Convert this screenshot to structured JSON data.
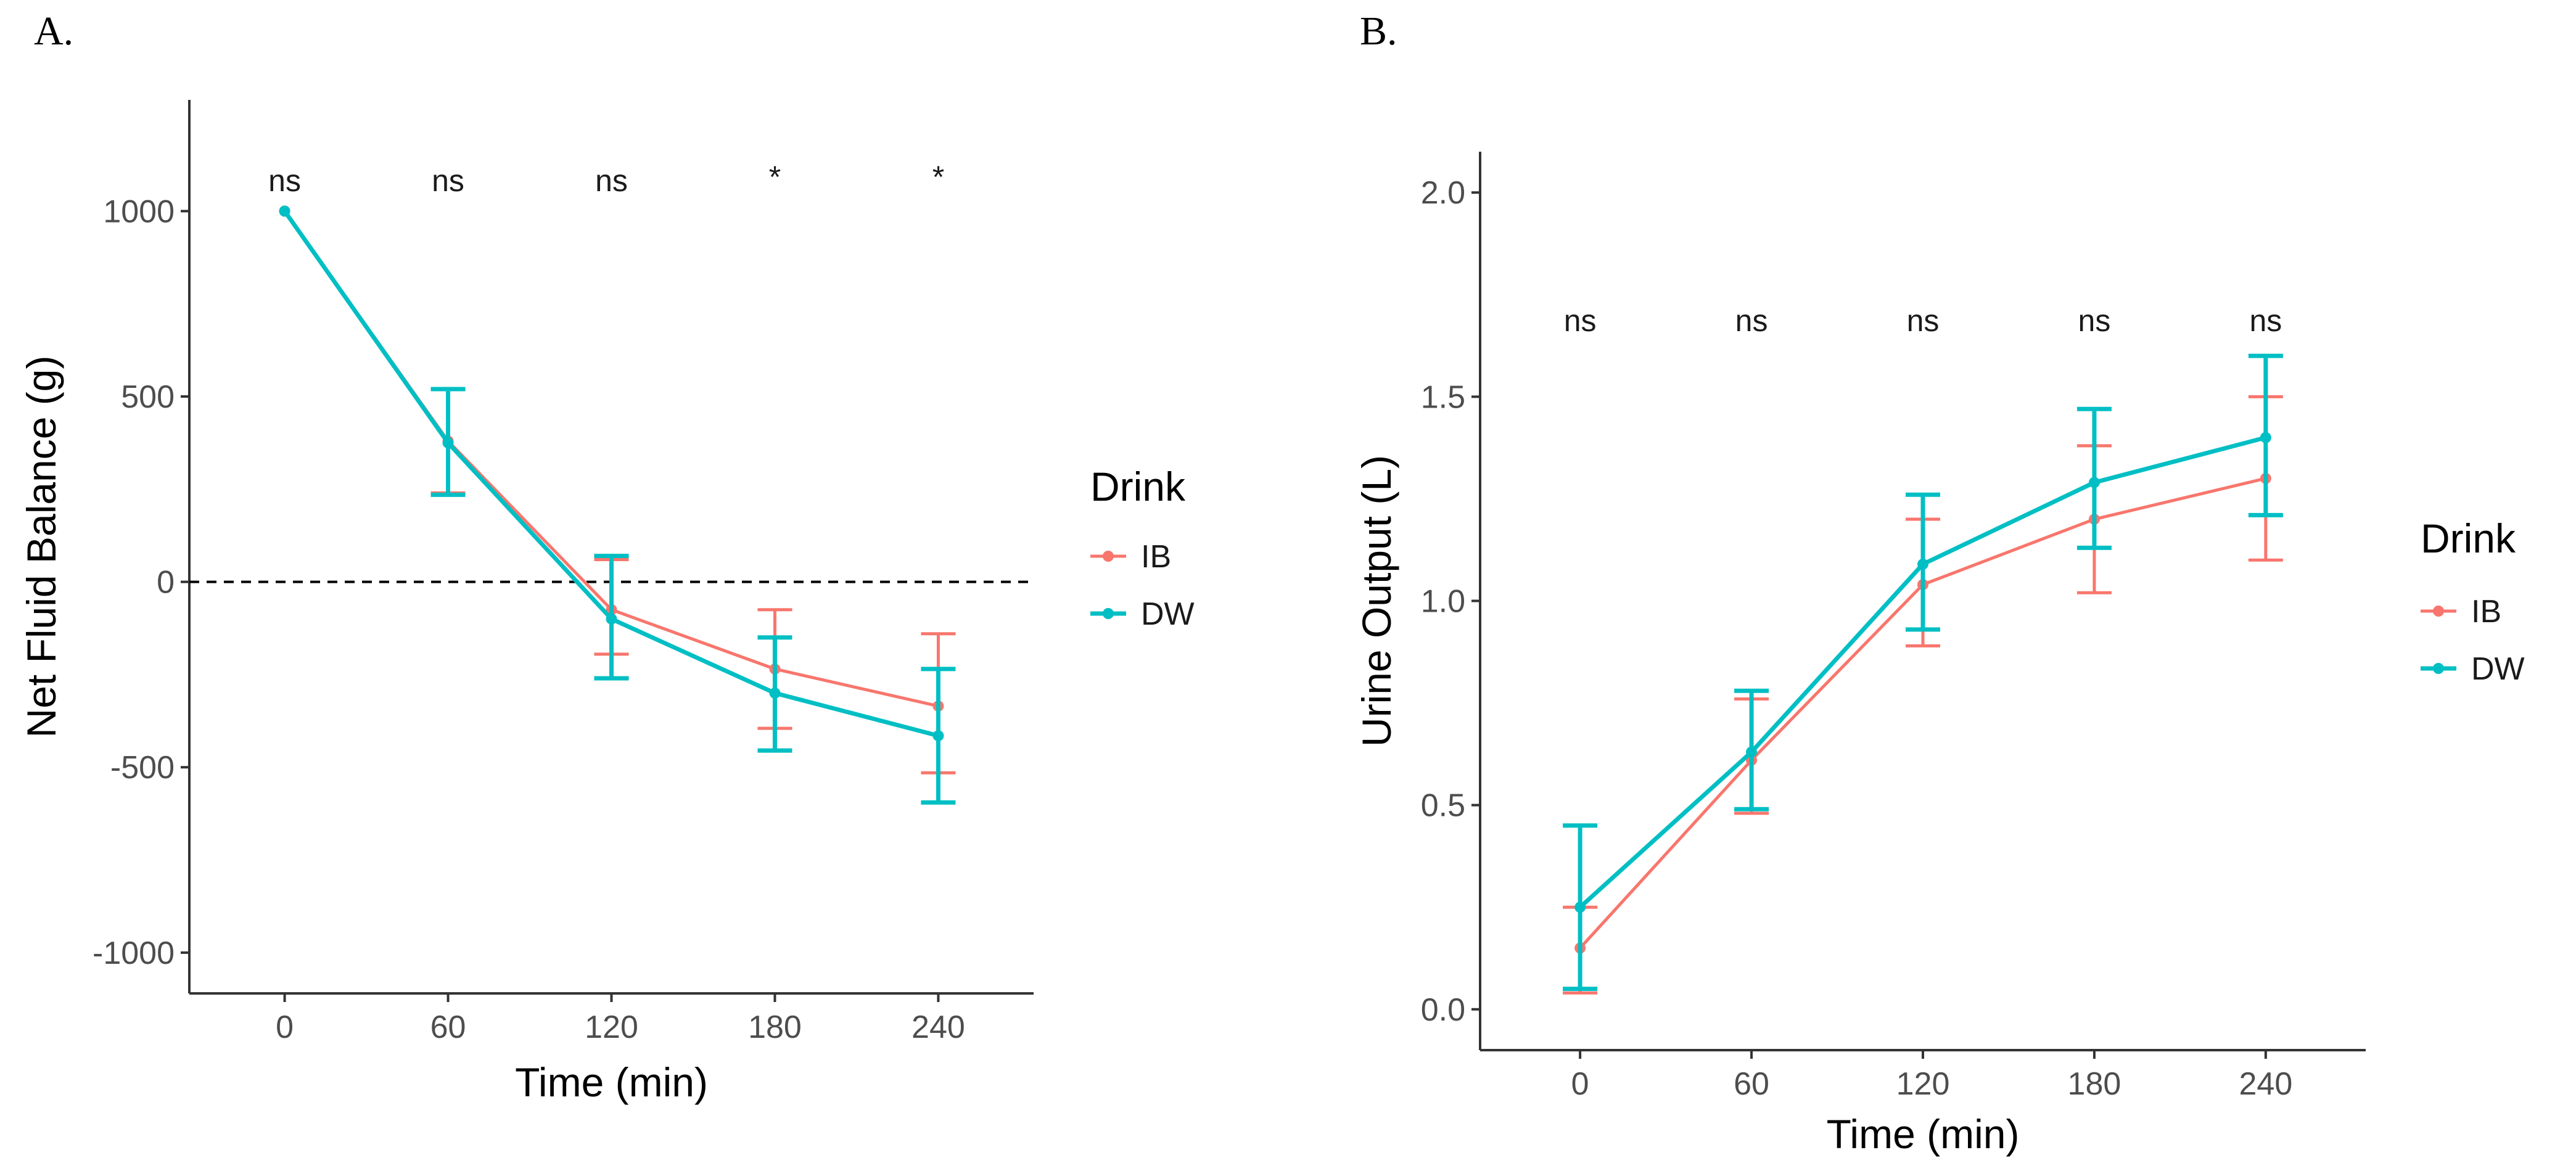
{
  "chart_data": [
    {
      "type": "line",
      "panel": "A.",
      "title": "",
      "xlabel": "Time (min)",
      "ylabel": "Net Fluid Balance (g)",
      "x": [
        0,
        60,
        120,
        180,
        240
      ],
      "x_ticks": [
        0,
        60,
        120,
        180,
        240
      ],
      "y_ticks": [
        -1000,
        -500,
        0,
        500,
        1000
      ],
      "xlim": [
        -35,
        275
      ],
      "ylim": [
        -1110,
        1300
      ],
      "reference_line": 0,
      "significance": [
        "ns",
        "ns",
        "ns",
        "*",
        "*"
      ],
      "legend": {
        "title": "Drink",
        "position": "right"
      },
      "series": [
        {
          "name": "IB",
          "color": "#F8766D",
          "values": [
            1000,
            380,
            -75,
            -235,
            -335
          ],
          "err_low": [
            1000,
            240,
            -195,
            -395,
            -515
          ],
          "err_high": [
            1000,
            520,
            60,
            -75,
            -140
          ]
        },
        {
          "name": "DW",
          "color": "#00BFC4",
          "values": [
            1000,
            375,
            -100,
            -300,
            -415
          ],
          "err_low": [
            1000,
            235,
            -260,
            -455,
            -595
          ],
          "err_high": [
            1000,
            520,
            70,
            -150,
            -235
          ]
        }
      ]
    },
    {
      "type": "line",
      "panel": "B.",
      "title": "",
      "xlabel": "Time (min)",
      "ylabel": "Urine Output (L)",
      "x": [
        0,
        60,
        120,
        180,
        240
      ],
      "x_ticks": [
        0,
        60,
        120,
        180,
        240
      ],
      "y_ticks": [
        "0.0",
        "0.5",
        "1.0",
        "1.5",
        "2.0"
      ],
      "xlim": [
        -35,
        275
      ],
      "ylim": [
        -0.1,
        2.1
      ],
      "significance": [
        "ns",
        "ns",
        "ns",
        "ns",
        "ns"
      ],
      "legend": {
        "title": "Drink",
        "position": "right"
      },
      "series": [
        {
          "name": "IB",
          "color": "#F8766D",
          "values": [
            0.15,
            0.61,
            1.04,
            1.2,
            1.3
          ],
          "err_low": [
            0.04,
            0.48,
            0.89,
            1.02,
            1.1
          ],
          "err_high": [
            0.25,
            0.76,
            1.2,
            1.38,
            1.5
          ]
        },
        {
          "name": "DW",
          "color": "#00BFC4",
          "values": [
            0.25,
            0.63,
            1.09,
            1.29,
            1.4
          ],
          "err_low": [
            0.05,
            0.49,
            0.93,
            1.13,
            1.21
          ],
          "err_high": [
            0.45,
            0.78,
            1.26,
            1.47,
            1.6
          ]
        }
      ]
    }
  ]
}
